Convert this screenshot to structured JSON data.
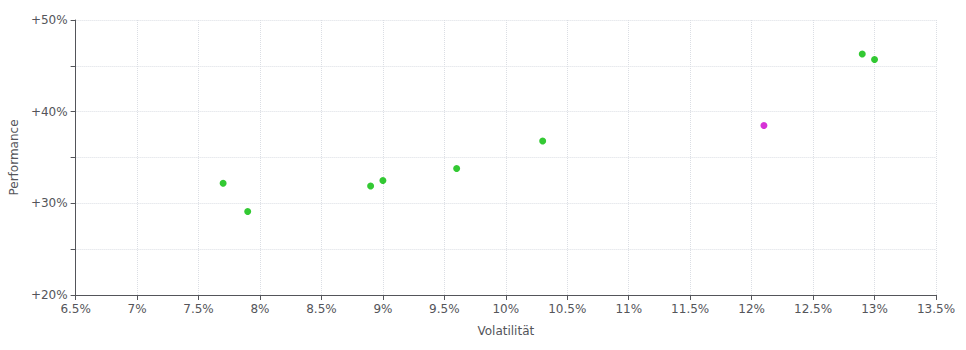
{
  "chart_data": {
    "type": "scatter",
    "xlabel": "Volatilität",
    "ylabel": "Performance",
    "xlim": [
      0.065,
      0.135
    ],
    "ylim": [
      0.2,
      0.5
    ],
    "xticks": [
      {
        "value": 0.065,
        "label": "6.5%"
      },
      {
        "value": 0.07,
        "label": "7%"
      },
      {
        "value": 0.075,
        "label": "7.5%"
      },
      {
        "value": 0.08,
        "label": "8%"
      },
      {
        "value": 0.085,
        "label": "8.5%"
      },
      {
        "value": 0.09,
        "label": "9%"
      },
      {
        "value": 0.095,
        "label": "9.5%"
      },
      {
        "value": 0.1,
        "label": "10%"
      },
      {
        "value": 0.105,
        "label": "10.5%"
      },
      {
        "value": 0.11,
        "label": "11%"
      },
      {
        "value": 0.115,
        "label": "11.5%"
      },
      {
        "value": 0.12,
        "label": "12%"
      },
      {
        "value": 0.125,
        "label": "12.5%"
      },
      {
        "value": 0.13,
        "label": "13%"
      },
      {
        "value": 0.135,
        "label": "13.5%"
      }
    ],
    "yticks": [
      {
        "value": 0.2,
        "label": "+20%"
      },
      {
        "value": 0.25,
        "label": null
      },
      {
        "value": 0.3,
        "label": "+30%"
      },
      {
        "value": 0.35,
        "label": null
      },
      {
        "value": 0.4,
        "label": "+40%"
      },
      {
        "value": 0.45,
        "label": null
      },
      {
        "value": 0.5,
        "label": "+50%"
      }
    ],
    "grid": true,
    "series": [
      {
        "color": "#00bb00",
        "marker": "circle",
        "x": [
          0.077,
          0.079,
          0.089,
          0.09,
          0.096,
          0.103,
          0.129,
          0.13
        ],
        "values": [
          0.322,
          0.291,
          0.319,
          0.325,
          0.338,
          0.368,
          0.463,
          0.457
        ]
      },
      {
        "color": "#cc00cc",
        "marker": "circle",
        "x": [
          0.121
        ],
        "values": [
          0.385
        ]
      }
    ]
  }
}
